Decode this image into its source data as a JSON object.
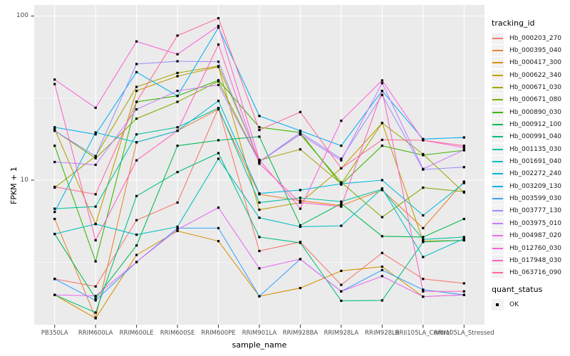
{
  "chart_data": {
    "type": "line",
    "title": "",
    "xlabel": "sample_name",
    "ylabel": "FPKM + 1",
    "y_scale": "log10",
    "ylim": [
      1.3,
      113
    ],
    "y_ticks": [
      {
        "label": "100",
        "value": 100
      },
      {
        "label": "10",
        "value": 10
      }
    ],
    "y_minor_values": [
      31.62,
      3.162
    ],
    "grid": true,
    "panel_bg": "#EBEBEB",
    "grid_color": "#FFFFFF",
    "marker": "black-square",
    "categories": [
      "PB350LA",
      "RRIM600LA",
      "RRIM600LE",
      "RRIM600SE",
      "RRIM600PE",
      "RRIM901LA",
      "RRIM928BA",
      "RRIM928LA",
      "RRIM928LB",
      "RRII105LA_Control",
      "RRII105LA_Stressed"
    ],
    "legend": {
      "title": "tracking_id",
      "position": "right"
    },
    "legend2": {
      "title": "quant_status",
      "items": [
        {
          "label": "OK",
          "marker": "black-square"
        }
      ]
    },
    "series": [
      {
        "name": "Hb_000203_270",
        "color": "#F8766D",
        "values": [
          2.5,
          2.25,
          5.7,
          7.3,
          27.5,
          3.7,
          4.2,
          2.3,
          3.6,
          2.5,
          2.35
        ]
      },
      {
        "name": "Hb_000395_040",
        "color": "#EA8331",
        "values": [
          5.8,
          1.45,
          17,
          20,
          27,
          8.2,
          7.5,
          7.0,
          8.7,
          5.1,
          9.8
        ]
      },
      {
        "name": "Hb_000417_300",
        "color": "#D89000",
        "values": [
          2.0,
          1.44,
          3.5,
          4.9,
          4.25,
          1.96,
          2.2,
          2.8,
          2.97,
          1.95,
          2.0
        ]
      },
      {
        "name": "Hb_000622_340",
        "color": "#C09B00",
        "values": [
          20.5,
          5.4,
          35,
          43,
          49,
          6.6,
          7.3,
          11.8,
          22.3,
          4.25,
          4.3
        ]
      },
      {
        "name": "Hb_000671_030",
        "color": "#A3A500",
        "values": [
          9.0,
          14,
          37,
          45,
          49.5,
          13.2,
          15.4,
          9.5,
          22.3,
          14.4,
          8.4
        ]
      },
      {
        "name": "Hb_000671_080",
        "color": "#7CAE00",
        "values": [
          20.0,
          13.6,
          23.7,
          30,
          40,
          13.0,
          19,
          9.7,
          5.95,
          9.0,
          8.5
        ]
      },
      {
        "name": "Hb_000890_030",
        "color": "#39B600",
        "values": [
          16.2,
          3.2,
          30,
          32.6,
          40.6,
          21,
          19.5,
          9.4,
          16.2,
          14.2,
          15.2
        ]
      },
      {
        "name": "Hb_000912_100",
        "color": "#00BB4E",
        "values": [
          4.7,
          1.9,
          4.0,
          16.2,
          17.5,
          18.4,
          5.3,
          7.2,
          4.55,
          4.5,
          5.8
        ]
      },
      {
        "name": "Hb_000991_040",
        "color": "#00BF7D",
        "values": [
          2.0,
          1.56,
          8.0,
          11.2,
          14.6,
          4.5,
          4.15,
          1.84,
          1.85,
          4.2,
          4.3
        ]
      },
      {
        "name": "Hb_001135_030",
        "color": "#00C1A3",
        "values": [
          6.7,
          6.9,
          19,
          21,
          27.5,
          7.3,
          7.8,
          7.4,
          8.8,
          4.35,
          4.5
        ]
      },
      {
        "name": "Hb_001691_040",
        "color": "#00BFC4",
        "values": [
          4.7,
          5.4,
          4.65,
          5.2,
          13.5,
          5.9,
          5.2,
          5.27,
          8.9,
          3.4,
          4.4
        ]
      },
      {
        "name": "Hb_002272_240",
        "color": "#00BADE",
        "values": [
          6.4,
          19.5,
          17,
          20,
          30.4,
          8.3,
          8.7,
          9.5,
          10.0,
          6.1,
          9.6
        ]
      },
      {
        "name": "Hb_003209_130",
        "color": "#00B0F6",
        "values": [
          21,
          19,
          45.5,
          32.6,
          85,
          24.6,
          20,
          16.2,
          35,
          17.8,
          18.2
        ]
      },
      {
        "name": "Hb_003599_030",
        "color": "#35A2FF",
        "values": [
          2.5,
          1.85,
          3.17,
          5.1,
          5.1,
          1.96,
          3.3,
          2.1,
          2.83,
          2.15,
          2.0
        ]
      },
      {
        "name": "Hb_003777_130",
        "color": "#9590FF",
        "values": [
          20,
          14,
          51,
          53,
          52.7,
          12.9,
          19.5,
          13.5,
          33,
          11.6,
          12.0
        ]
      },
      {
        "name": "Hb_003975_010",
        "color": "#C77CFF",
        "values": [
          12.9,
          12.4,
          27,
          35,
          38,
          12.9,
          19,
          13.2,
          39,
          11.7,
          15.3
        ]
      },
      {
        "name": "Hb_004987_020",
        "color": "#E76BF3",
        "values": [
          2.0,
          1.97,
          3.17,
          5.0,
          6.8,
          2.9,
          3.3,
          2.1,
          2.6,
          1.95,
          2.0
        ]
      },
      {
        "name": "Hb_012760_030",
        "color": "#FA62DB",
        "values": [
          41,
          27.6,
          70,
          58.5,
          87,
          13.3,
          6.7,
          23,
          40.5,
          17.5,
          15.8
        ]
      },
      {
        "name": "Hb_017948_030",
        "color": "#FF62BC",
        "values": [
          38.5,
          4.3,
          13.2,
          20,
          67,
          12.6,
          7.3,
          6.9,
          35,
          2.1,
          2.1
        ]
      },
      {
        "name": "Hb_063716_090",
        "color": "#FF6A98",
        "values": [
          9.1,
          8.2,
          30,
          76,
          97,
          20.2,
          26,
          11.8,
          17.6,
          17.5,
          16.2
        ]
      }
    ]
  }
}
